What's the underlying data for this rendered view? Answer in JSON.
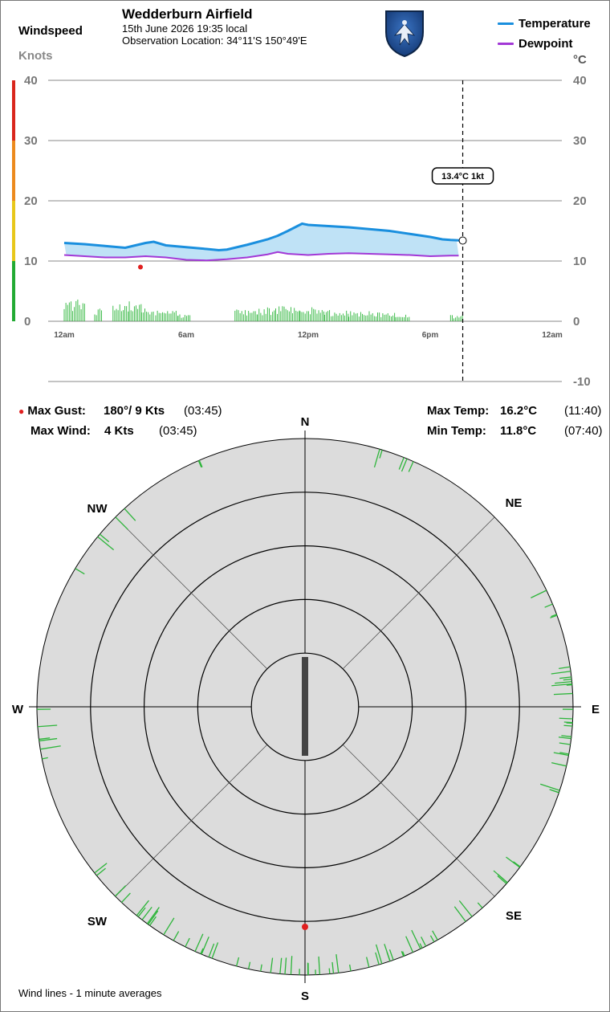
{
  "header": {
    "title": "Wedderburn Airfield",
    "date_line": "15th June 2026  19:35 local",
    "location_line": "Observation Location: 34°11'S 150°49'E",
    "windspeed_label": "Windspeed",
    "knots_label": "Knots",
    "celsius_label": "°C"
  },
  "legend": {
    "temperature": "Temperature",
    "dewpoint": "Dewpoint",
    "temperature_color": "#1a8fde",
    "dewpoint_color": "#a238d6"
  },
  "stats": {
    "max_gust_label": "Max Gust:",
    "max_gust_value": "180°/ 9 Kts",
    "max_gust_time": "(03:45)",
    "max_wind_label": "Max Wind:",
    "max_wind_value": "4 Kts",
    "max_wind_time": "(03:45)",
    "max_temp_label": "Max Temp:",
    "max_temp_value": "16.2°C",
    "max_temp_time": "(11:40)",
    "min_temp_label": "Min Temp:",
    "min_temp_value": "11.8°C",
    "min_temp_time": "(07:40)"
  },
  "footer": "Wind lines - 1 minute averages",
  "chart_data": [
    {
      "type": "line",
      "title": "",
      "x_tick_labels": [
        "12am",
        "6am",
        "12pm",
        "6pm",
        "12am"
      ],
      "x_tick_hours": [
        0,
        6,
        12,
        18,
        24
      ],
      "left_axis": {
        "label": "Knots",
        "ticks": [
          0,
          10,
          20,
          30,
          40
        ],
        "ylim": [
          0,
          40
        ]
      },
      "right_axis": {
        "label": "°C",
        "ticks": [
          -10,
          0,
          10,
          20,
          30,
          40
        ],
        "ylim": [
          -10,
          40
        ]
      },
      "current_readout": "13.4°C  1kt",
      "current_hour": 19.6,
      "wind_scale_colors": {
        "0-10": "#22aa33",
        "10-20": "#e8c71a",
        "20-30": "#ec8a1d",
        "30-40": "#d9261c"
      },
      "series": [
        {
          "name": "Temperature",
          "unit": "°C",
          "points": [
            [
              0,
              13.0
            ],
            [
              1,
              12.8
            ],
            [
              2,
              12.5
            ],
            [
              3,
              12.2
            ],
            [
              3.5,
              12.6
            ],
            [
              4,
              13.0
            ],
            [
              4.4,
              13.2
            ],
            [
              4.8,
              12.8
            ],
            [
              5,
              12.6
            ],
            [
              6,
              12.3
            ],
            [
              7,
              12.0
            ],
            [
              7.6,
              11.8
            ],
            [
              8,
              11.9
            ],
            [
              8.5,
              12.3
            ],
            [
              9,
              12.7
            ],
            [
              10,
              13.6
            ],
            [
              10.5,
              14.2
            ],
            [
              11,
              15.0
            ],
            [
              11.7,
              16.2
            ],
            [
              12,
              16.0
            ],
            [
              13,
              15.8
            ],
            [
              14,
              15.6
            ],
            [
              15,
              15.3
            ],
            [
              16,
              15.0
            ],
            [
              17,
              14.5
            ],
            [
              18,
              14.0
            ],
            [
              18.6,
              13.6
            ],
            [
              19,
              13.5
            ],
            [
              19.6,
              13.4
            ]
          ]
        },
        {
          "name": "Dewpoint",
          "unit": "°C",
          "points": [
            [
              0,
              11.0
            ],
            [
              1,
              10.8
            ],
            [
              2,
              10.6
            ],
            [
              3,
              10.6
            ],
            [
              4,
              10.8
            ],
            [
              5,
              10.6
            ],
            [
              6,
              10.2
            ],
            [
              7,
              10.1
            ],
            [
              8,
              10.3
            ],
            [
              9,
              10.6
            ],
            [
              10,
              11.1
            ],
            [
              10.5,
              11.5
            ],
            [
              11,
              11.2
            ],
            [
              12,
              11.0
            ],
            [
              13,
              11.2
            ],
            [
              14,
              11.3
            ],
            [
              15,
              11.2
            ],
            [
              16,
              11.1
            ],
            [
              17,
              11.0
            ],
            [
              18,
              10.8
            ],
            [
              19,
              10.9
            ],
            [
              19.4,
              10.9
            ]
          ]
        },
        {
          "name": "Wind",
          "unit": "kt",
          "bar_ranges": [
            [
              0,
              1,
              3.5
            ],
            [
              1.5,
              1.9,
              2.0
            ],
            [
              2.4,
              3.2,
              2.8
            ],
            [
              3.2,
              3.8,
              3.2
            ],
            [
              3.8,
              4.4,
              2.2
            ],
            [
              4.5,
              5.6,
              1.8
            ],
            [
              5.6,
              6.2,
              1.2
            ],
            [
              8.4,
              9.5,
              2.0
            ],
            [
              9.5,
              10.4,
              2.2
            ],
            [
              10.4,
              11.6,
              2.5
            ],
            [
              11.6,
              12.8,
              2.3
            ],
            [
              12.8,
              14.0,
              1.8
            ],
            [
              14.0,
              15.0,
              1.6
            ],
            [
              15.0,
              16.3,
              1.4
            ],
            [
              16.3,
              17.0,
              1.2
            ],
            [
              19.0,
              19.6,
              1.0
            ]
          ],
          "max_gust": {
            "hour": 3.75,
            "kt": 9
          }
        }
      ]
    },
    {
      "type": "wind-rose",
      "directions": [
        "N",
        "NE",
        "E",
        "SE",
        "S",
        "SW",
        "W",
        "NW"
      ],
      "rings": 5,
      "current_direction_deg": 180,
      "max_gust_direction_deg": 180,
      "wind_line_sectors": [
        [
          15,
          30,
          5
        ],
        [
          60,
          75,
          4
        ],
        [
          80,
          110,
          22
        ],
        [
          120,
          145,
          8
        ],
        [
          150,
          200,
          30
        ],
        [
          200,
          235,
          18
        ],
        [
          250,
          270,
          6
        ],
        [
          300,
          320,
          5
        ],
        [
          330,
          340,
          2
        ]
      ]
    }
  ]
}
